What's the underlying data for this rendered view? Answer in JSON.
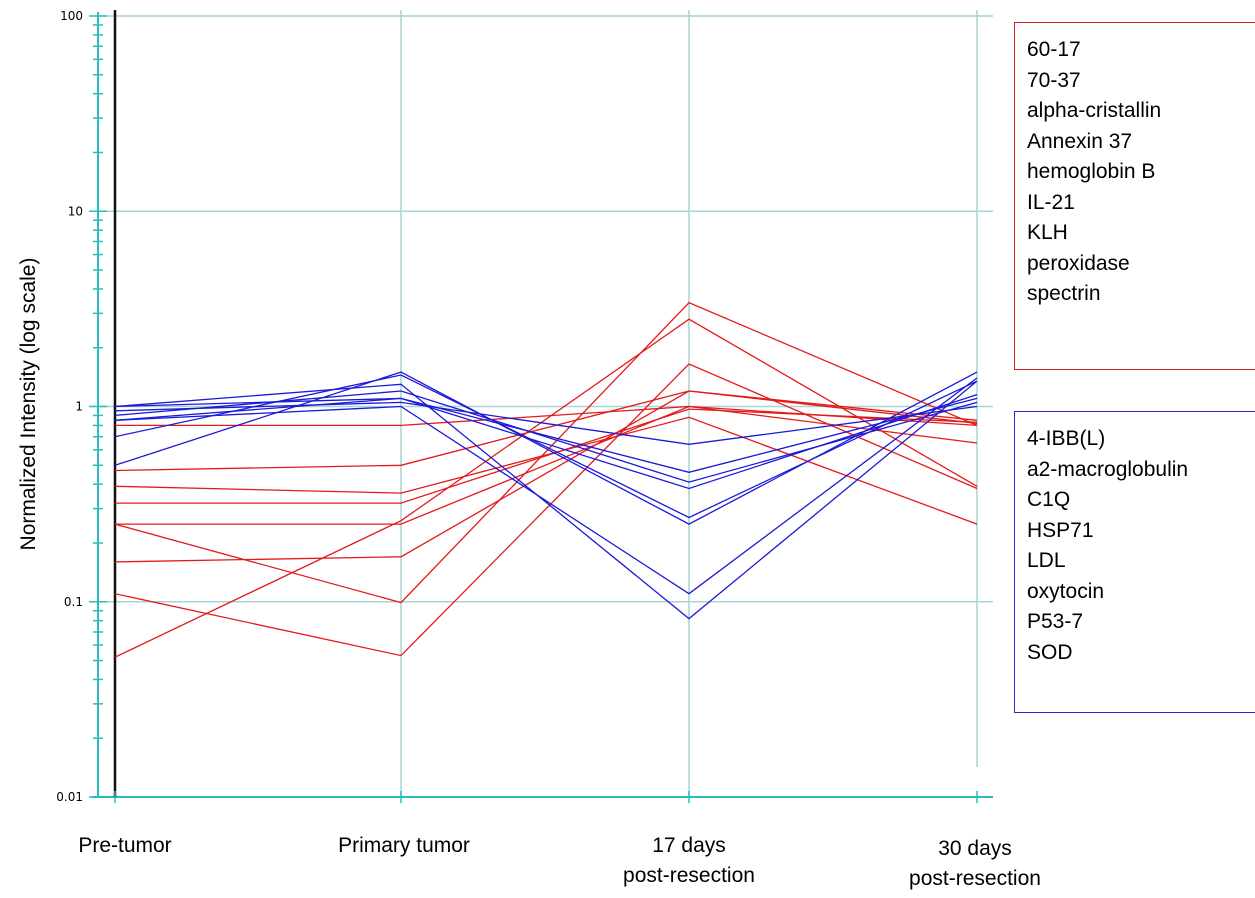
{
  "chart_data": {
    "type": "line",
    "ylabel": "Normalized Intensity (log scale)",
    "xlabel": "",
    "yscale": "log",
    "ylim": [
      0.01,
      100
    ],
    "yticks": [
      "100",
      "10",
      "1",
      "0.1",
      "0.01"
    ],
    "categories": [
      "Pre-tumor",
      "Primary tumor",
      "17 days\npost-resection",
      "30 days\npost-resection"
    ],
    "grid": true,
    "legend_placement": "right",
    "colors": {
      "up": "#e41a1a",
      "down": "#1a1ad9",
      "grid": "#a8d4d4",
      "axis": "#2bbcbc"
    },
    "groups": [
      {
        "color": "red",
        "names": [
          "60-17",
          "70-37",
          "alpha-cristallin",
          "Annexin 37",
          "hemoglobin B",
          "IL-21",
          "KLH",
          "peroxidase",
          "spectrin"
        ],
        "series": [
          {
            "values": [
              0.052,
              0.26,
              2.8,
              0.39
            ]
          },
          {
            "values": [
              0.11,
              0.053,
              1.65,
              0.38
            ]
          },
          {
            "values": [
              0.25,
              0.099,
              3.4,
              0.8
            ]
          },
          {
            "values": [
              0.16,
              0.17,
              1.2,
              0.85
            ]
          },
          {
            "values": [
              0.25,
              0.25,
              1.0,
              0.8
            ]
          },
          {
            "values": [
              0.32,
              0.32,
              0.97,
              0.83
            ]
          },
          {
            "values": [
              0.39,
              0.36,
              0.88,
              0.25
            ]
          },
          {
            "values": [
              0.47,
              0.5,
              1.2,
              0.82
            ]
          },
          {
            "values": [
              0.8,
              0.8,
              1.0,
              0.65
            ]
          }
        ]
      },
      {
        "color": "blue",
        "names": [
          "4-IBB(L)",
          "a2-macroglobulin",
          "C1Q",
          "HSP71",
          "LDL",
          "oxytocin",
          "P53-7",
          "SOD"
        ],
        "series": [
          {
            "values": [
              0.5,
              1.5,
              0.25,
              1.5
            ]
          },
          {
            "values": [
              0.7,
              1.45,
              0.27,
              1.35
            ]
          },
          {
            "values": [
              1.0,
              1.3,
              0.082,
              1.35
            ]
          },
          {
            "values": [
              0.85,
              1.0,
              0.11,
              1.4
            ]
          },
          {
            "values": [
              0.85,
              1.1,
              0.46,
              1.1
            ]
          },
          {
            "values": [
              0.9,
              1.2,
              0.41,
              1.05
            ]
          },
          {
            "values": [
              0.95,
              1.05,
              0.64,
              1.0
            ]
          },
          {
            "values": [
              1.0,
              1.1,
              0.38,
              1.15
            ]
          }
        ]
      }
    ]
  }
}
